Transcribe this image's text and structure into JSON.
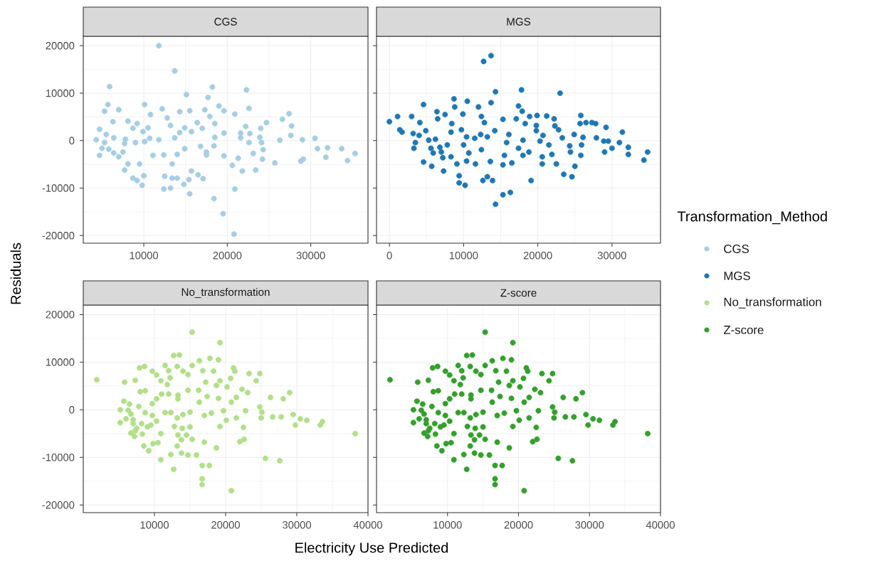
{
  "chart_data": [
    {
      "type": "scatter",
      "title": "CGS",
      "xlim": [
        2750,
        36850
      ],
      "ylim": [
        -21600,
        22000
      ],
      "xticks": [
        10000,
        20000,
        30000
      ],
      "yticks": [
        -20000,
        -10000,
        0,
        10000,
        20000
      ],
      "grid": true,
      "legend": "right",
      "legend_title": "Transformation_Method",
      "marker": "circle",
      "series": [
        {
          "name": "CGS",
          "color": "#a6cee3",
          "x": [
            11800,
            13700,
            5900,
            18200,
            22300,
            15100,
            17700,
            5700,
            5300,
            7000,
            10100,
            12200,
            15500,
            17300,
            19000,
            19600,
            22600,
            20900,
            27400,
            26600,
            24700,
            6300,
            8100,
            9200,
            10800,
            12800,
            14300,
            16400,
            17900,
            18500,
            27700,
            22200,
            4700,
            8700,
            10500,
            13200,
            14900,
            17000,
            24000,
            9900,
            14300,
            15700,
            19600,
            21600,
            22700,
            27600,
            5500,
            4300,
            5300,
            6400,
            7800,
            10700,
            11800,
            13700,
            18500,
            21600,
            23900,
            26300,
            29000,
            30500,
            4700,
            5000,
            5800,
            6400,
            7000,
            7500,
            7700,
            9000,
            10100,
            11100,
            12400,
            13400,
            14000,
            14900,
            16800,
            17500,
            17500,
            18400,
            19600,
            20600,
            21300,
            21800,
            22600,
            23100,
            23400,
            24100,
            24300,
            24200,
            25700,
            28800,
            29100,
            30800,
            32000,
            31800,
            33700,
            34400,
            35300,
            7700,
            8100,
            8700,
            9200,
            9800,
            10000,
            9500,
            12500,
            12400,
            13200,
            13400,
            14000,
            14800,
            15400,
            15700,
            15500,
            16500,
            17100,
            18400,
            20900,
            19500,
            20800
          ],
          "values": [
            20000,
            14700,
            11400,
            11300,
            10700,
            9700,
            9100,
            7600,
            6200,
            6500,
            7600,
            6700,
            6300,
            6500,
            7300,
            6300,
            6800,
            5600,
            5700,
            4500,
            3800,
            4000,
            4100,
            3600,
            5500,
            4800,
            6100,
            3800,
            5100,
            3600,
            3100,
            3000,
            2400,
            2600,
            2700,
            3200,
            2700,
            2600,
            2600,
            1900,
            1700,
            1900,
            1600,
            1600,
            1500,
            1100,
            1300,
            200,
            -400,
            600,
            300,
            500,
            200,
            600,
            700,
            600,
            700,
            100,
            200,
            500,
            -3100,
            -1600,
            -1800,
            -2600,
            -3400,
            -2400,
            -600,
            -400,
            -200,
            -3100,
            -3000,
            -4900,
            -2900,
            -1700,
            -1200,
            -2400,
            -3000,
            -1100,
            -3200,
            -5200,
            -3700,
            -6400,
            -400,
            -2700,
            -6200,
            -400,
            -1900,
            -3900,
            -4700,
            -4300,
            -3900,
            -1700,
            -1500,
            -3500,
            -1700,
            -4200,
            -2700,
            -6200,
            -4900,
            -7900,
            -8400,
            -9400,
            -7400,
            -4900,
            -7500,
            -10200,
            -10000,
            -7900,
            -7900,
            -9200,
            -8200,
            -6400,
            -11200,
            -7200,
            -8000,
            -12200,
            -10200,
            -15400,
            -19700
          ]
        }
      ]
    },
    {
      "type": "scatter",
      "title": "MGS",
      "xlim": [
        -1740,
        36540
      ],
      "ylim": [
        -21600,
        22000
      ],
      "xticks": [
        0,
        10000,
        20000,
        30000
      ],
      "yticks": [
        -20000,
        -10000,
        0,
        10000,
        20000
      ],
      "tick_labels": "x",
      "grid": true,
      "legend": "right",
      "marker": "circle",
      "series": [
        {
          "name": "MGS",
          "color": "#1f78b4",
          "x": [
            12700,
            13700,
            0,
            1100,
            1400,
            1700,
            3000,
            3200,
            3500,
            3300,
            4100,
            4600,
            4600,
            4900,
            4000,
            5300,
            5700,
            6400,
            6500,
            7500,
            6200,
            5900,
            6800,
            7200,
            7300,
            7800,
            8400,
            8700,
            8800,
            8300,
            8300,
            9100,
            9400,
            9400,
            10200,
            9900,
            9700,
            10000,
            10500,
            10400,
            10700,
            10400,
            11600,
            12000,
            11500,
            12300,
            12400,
            12800,
            12400,
            12600,
            13200,
            13900,
            14300,
            13700,
            13200,
            13600,
            14200,
            14300,
            15300,
            16300,
            15300,
            15300,
            15800,
            16100,
            16500,
            15500,
            17100,
            17400,
            17800,
            17900,
            17400,
            18000,
            18000,
            18300,
            19100,
            18800,
            18900,
            19900,
            19800,
            19800,
            20300,
            20600,
            20600,
            20700,
            21200,
            21500,
            22200,
            22300,
            21900,
            22800,
            22500,
            23000,
            23500,
            23300,
            24300,
            24600,
            24400,
            24900,
            25000,
            25800,
            25700,
            26100,
            25900,
            25800,
            26500,
            27300,
            27800,
            27900,
            29200,
            28900,
            29500,
            29000,
            30000,
            31000,
            31400,
            32200,
            32200,
            34300,
            34800,
            7000,
            5600
          ],
          "values": [
            16700,
            17900,
            4000,
            5100,
            2300,
            1800,
            5100,
            1500,
            -400,
            -1600,
            3800,
            7600,
            -4500,
            2100,
            1100,
            100,
            -5400,
            6100,
            4600,
            5500,
            300,
            -2600,
            -1400,
            -3600,
            -6400,
            -900,
            3600,
            8800,
            7100,
            1800,
            -3400,
            -4900,
            -7400,
            -8900,
            -9400,
            5600,
            2300,
            -900,
            8300,
            800,
            -2600,
            -4300,
            -4900,
            7100,
            500,
            1300,
            5100,
            3800,
            -1900,
            -8400,
            -7600,
            -8400,
            10300,
            8000,
            800,
            -4400,
            2100,
            -13400,
            -11400,
            -10900,
            -5100,
            4500,
            -400,
            1300,
            -4700,
            -3100,
            4600,
            7300,
            10700,
            6200,
            -1600,
            100,
            -3100,
            3600,
            -8400,
            -2400,
            5100,
            5300,
            3200,
            2100,
            -100,
            -4900,
            -3400,
            1100,
            5200,
            -900,
            4600,
            3100,
            -2900,
            2300,
            -4900,
            10000,
            -7100,
            600,
            -1100,
            -7600,
            -2400,
            1300,
            -5400,
            5300,
            3600,
            700,
            -900,
            -3100,
            3800,
            3800,
            3600,
            600,
            2800,
            -100,
            -100,
            -2400,
            -1600,
            -400,
            1800,
            -1400,
            -2900,
            -4100,
            -2400,
            -2400,
            -1600
          ]
        }
      ]
    },
    {
      "type": "scatter",
      "title": "No_transformation",
      "xlabel": "Electricity Use Predicted",
      "ylabel": "Residuals",
      "xlim": [
        0,
        40000
      ],
      "ylim": [
        -21600,
        22000
      ],
      "xticks": [
        10000,
        20000,
        30000,
        40000
      ],
      "yticks": [
        -20000,
        -10000,
        0,
        10000,
        20000
      ],
      "grid": true,
      "legend": "right",
      "marker": "circle",
      "series": [
        {
          "name": "No_transformation",
          "color": "#b2df8a",
          "x": [
            1900,
            15300,
            19200,
            12700,
            13500,
            17800,
            19000,
            16300,
            11500,
            13200,
            7900,
            8600,
            15300,
            21100,
            21300,
            9700,
            10300,
            12000,
            14000,
            14700,
            16800,
            18300,
            23300,
            24800,
            24300,
            20700,
            19200,
            12200,
            10900,
            5800,
            7300,
            11800,
            17200,
            18700,
            20200,
            16200,
            14700,
            22300,
            23100,
            29000,
            26300,
            28100,
            8000,
            8700,
            12000,
            13300,
            13300,
            11000,
            10300,
            17400,
            19000,
            21500,
            20800,
            16300,
            9700,
            5700,
            24800,
            5200,
            5200,
            6700,
            7000,
            6000,
            7300,
            6700,
            7200,
            8200,
            8700,
            9700,
            10300,
            9500,
            9000,
            8300,
            8500,
            9200,
            9800,
            10500,
            10900,
            10900,
            11500,
            12300,
            13200,
            12800,
            13300,
            13900,
            13800,
            13200,
            12300,
            12700,
            13800,
            14700,
            14500,
            15000,
            15300,
            15000,
            14000,
            15900,
            17000,
            16700,
            17700,
            16700,
            16700,
            18700,
            19200,
            18000,
            17000,
            19700,
            20100,
            21500,
            20800,
            22500,
            22000,
            22600,
            22800,
            25000,
            25100,
            25600,
            26600,
            27800,
            27600,
            29500,
            29800,
            30500,
            31400,
            33300,
            33600,
            38200,
            6500,
            6300,
            7000,
            7500,
            7800
          ],
          "values": [
            6300,
            16300,
            14100,
            11400,
            11500,
            10800,
            10500,
            10300,
            9300,
            9100,
            8800,
            9100,
            9300,
            8800,
            8100,
            8100,
            7300,
            8200,
            8100,
            7400,
            8200,
            8100,
            7600,
            7600,
            6100,
            6600,
            6100,
            6700,
            6100,
            5800,
            6200,
            5300,
            5800,
            5100,
            4800,
            4100,
            4100,
            4300,
            3600,
            3600,
            2600,
            2300,
            3800,
            4000,
            3300,
            3100,
            2300,
            3300,
            2300,
            2800,
            2400,
            2600,
            1600,
            1600,
            1300,
            1800,
            600,
            0,
            -2700,
            -900,
            -2900,
            -1900,
            -4400,
            -4900,
            -5600,
            -2900,
            -600,
            -1200,
            -2400,
            -3200,
            -3600,
            -5100,
            -7600,
            -8600,
            -7100,
            -6900,
            -5000,
            -10500,
            -600,
            -600,
            -1700,
            -3500,
            -5300,
            -3900,
            -6300,
            -7600,
            -9400,
            -12500,
            -9100,
            -9500,
            -5300,
            -3600,
            -6200,
            -500,
            -1000,
            -9500,
            -6800,
            -11700,
            -11700,
            -14500,
            -15700,
            -8000,
            -3500,
            -700,
            -1200,
            -200,
            -2200,
            -1700,
            -17000,
            -3700,
            -6700,
            -6200,
            -200,
            -1700,
            -500,
            -10200,
            -1500,
            -1500,
            -10700,
            -1000,
            -3200,
            -1900,
            -2200,
            -3200,
            -2500,
            -5000,
            1200,
            -100,
            -2100,
            -3900,
            700
          ]
        }
      ]
    },
    {
      "type": "scatter",
      "title": "Z-score",
      "xlim": [
        0,
        40000
      ],
      "ylim": [
        -21600,
        22000
      ],
      "xticks": [
        10000,
        20000,
        30000,
        40000
      ],
      "yticks": [
        -20000,
        -10000,
        0,
        10000,
        20000
      ],
      "tick_labels": "x",
      "grid": true,
      "legend": "right",
      "marker": "circle",
      "series": [
        {
          "name": "Z-score",
          "color": "#33a02c",
          "x": [
            1900,
            15300,
            19200,
            12700,
            13500,
            17800,
            19000,
            16300,
            11500,
            13200,
            7900,
            8600,
            15300,
            21100,
            21300,
            9700,
            10300,
            12000,
            14000,
            14700,
            16800,
            18300,
            23300,
            24800,
            24300,
            20700,
            19200,
            12200,
            10900,
            5800,
            7300,
            11800,
            17200,
            18700,
            20200,
            16200,
            14700,
            22300,
            23100,
            29000,
            26300,
            28100,
            8000,
            8700,
            12000,
            13300,
            13300,
            11000,
            10300,
            17400,
            19000,
            21500,
            20800,
            16300,
            9700,
            5700,
            24800,
            5200,
            5200,
            6700,
            7000,
            6000,
            7300,
            6700,
            7200,
            8200,
            8700,
            9700,
            10300,
            9500,
            9000,
            8300,
            8500,
            9200,
            9800,
            10500,
            10900,
            10900,
            11500,
            12300,
            13200,
            12800,
            13300,
            13900,
            13800,
            13200,
            12300,
            12700,
            13800,
            14700,
            14500,
            15000,
            15300,
            15000,
            14000,
            15900,
            17000,
            16700,
            17700,
            16700,
            16700,
            18700,
            19200,
            18000,
            17000,
            19700,
            20100,
            21500,
            20800,
            22500,
            22000,
            22600,
            22800,
            25000,
            25100,
            25600,
            26600,
            27800,
            27600,
            29500,
            29800,
            30500,
            31400,
            33300,
            33600,
            38200,
            6500,
            6300,
            7000,
            7500,
            7800
          ],
          "values": [
            6300,
            16300,
            14100,
            11400,
            11500,
            10800,
            10500,
            10300,
            9300,
            9100,
            8800,
            9100,
            9300,
            8800,
            8100,
            8100,
            7300,
            8200,
            8100,
            7400,
            8200,
            8100,
            7600,
            7600,
            6100,
            6600,
            6100,
            6700,
            6100,
            5800,
            6200,
            5300,
            5800,
            5100,
            4800,
            4100,
            4100,
            4300,
            3600,
            3600,
            2600,
            2300,
            3800,
            4000,
            3300,
            3100,
            2300,
            3300,
            2300,
            2800,
            2400,
            2600,
            1600,
            1600,
            1300,
            1800,
            600,
            0,
            -2700,
            -900,
            -2900,
            -1900,
            -4400,
            -4900,
            -5600,
            -2900,
            -600,
            -1200,
            -2400,
            -3200,
            -3600,
            -5100,
            -7600,
            -8600,
            -7100,
            -6900,
            -5000,
            -10500,
            -600,
            -600,
            -1700,
            -3500,
            -5300,
            -3900,
            -6300,
            -7600,
            -9400,
            -12500,
            -9100,
            -9500,
            -5300,
            -3600,
            -6200,
            -500,
            -1000,
            -9500,
            -6800,
            -11700,
            -11700,
            -14500,
            -15700,
            -8000,
            -3500,
            -700,
            -1200,
            -200,
            -2200,
            -1700,
            -17000,
            -3700,
            -6700,
            -6200,
            -200,
            -1700,
            -500,
            -10200,
            -1500,
            -1500,
            -10700,
            -1000,
            -3200,
            -1900,
            -2200,
            -3200,
            -2500,
            -5000,
            1200,
            -100,
            -2100,
            -3900,
            700
          ]
        }
      ]
    }
  ]
}
